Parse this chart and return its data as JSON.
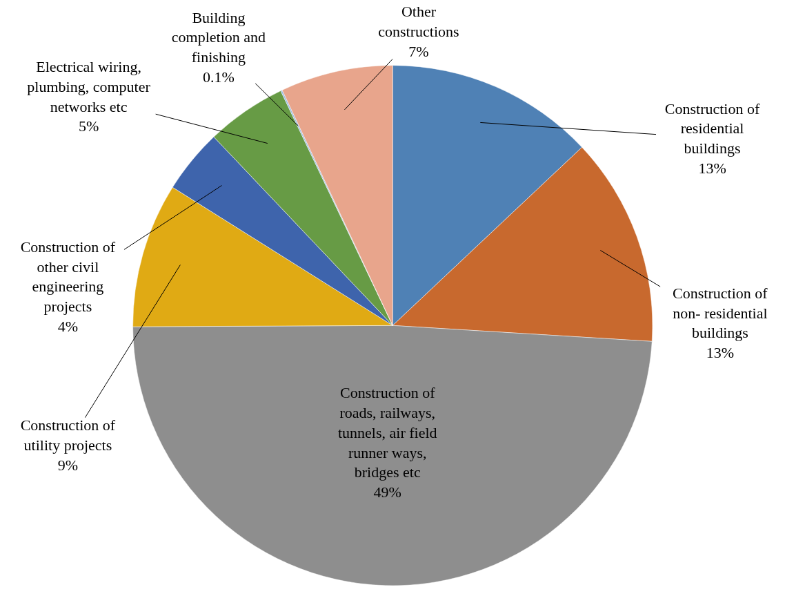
{
  "chart_data": {
    "type": "pie",
    "categories": [
      "Construction of residential buildings",
      "Construction of non- residential buildings",
      "Construction of roads, railways, tunnels, air field runner ways, bridges etc",
      "Construction of utility projects",
      "Construction of other civil engineering projects",
      "Electrical wiring, plumbing, computer networks etc",
      "Building completion and finishing",
      "Other constructions"
    ],
    "values": [
      13,
      13,
      49,
      9,
      4,
      5,
      0.1,
      7
    ],
    "value_labels": [
      "13%",
      "13%",
      "49%",
      "9%",
      "4%",
      "5%",
      "0.1%",
      "7%"
    ],
    "colors": [
      "#4f81b5",
      "#c8692e",
      "#8e8e8e",
      "#e0aa14",
      "#3e64ac",
      "#679b45",
      "#9cbde0",
      "#e8a58c"
    ]
  }
}
